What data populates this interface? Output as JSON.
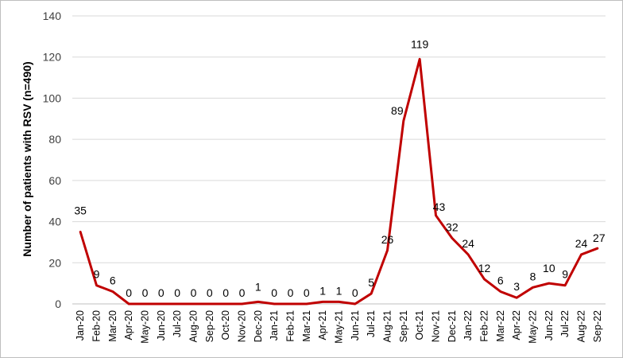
{
  "chart_data": {
    "type": "line",
    "title": "",
    "xlabel": "",
    "ylabel": "Number of patients with RSV (n=490)",
    "ylim": [
      0,
      140
    ],
    "yticks": [
      0,
      20,
      40,
      60,
      80,
      100,
      120,
      140
    ],
    "grid": "horizontal",
    "legend": "none",
    "series_color": "#c00000",
    "categories": [
      "Jan-20",
      "Feb-20",
      "Mar-20",
      "Apr-20",
      "May-20",
      "Jun-20",
      "Jul-20",
      "Aug-20",
      "Sep-20",
      "Oct-20",
      "Nov-20",
      "Dec-20",
      "Jan-21",
      "Feb-21",
      "Mar-21",
      "Apr-21",
      "May-21",
      "Jun-21",
      "Jul-21",
      "Aug-21",
      "Sep-21",
      "Oct-21",
      "Nov-21",
      "Dec-21",
      "Jan-22",
      "Feb-22",
      "Mar-22",
      "Apr-22",
      "May-22",
      "Jun-22",
      "Jul-22",
      "Aug-22",
      "Sep-22"
    ],
    "series": [
      {
        "values": [
          35,
          9,
          6,
          0,
          0,
          0,
          0,
          0,
          0,
          0,
          0,
          1,
          0,
          0,
          0,
          1,
          1,
          0,
          5,
          26,
          89,
          119,
          43,
          32,
          24,
          12,
          6,
          3,
          8,
          10,
          9,
          24,
          27
        ]
      }
    ]
  }
}
